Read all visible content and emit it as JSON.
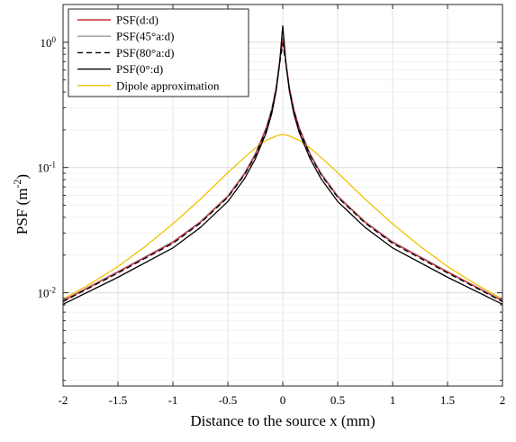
{
  "chart_data": {
    "type": "line",
    "title": "",
    "xlabel": "Distance to the source x (mm)",
    "ylabel": "PSF (m",
    "ylabel_exponent": "-2",
    "ylabel_suffix": ")",
    "xlim": [
      -2,
      2
    ],
    "ylim": [
      0.0018,
      2
    ],
    "yscale": "log",
    "grid": true,
    "legend_position": "top-left",
    "x_ticks": [
      -2,
      -1.5,
      -1,
      -0.5,
      0,
      0.5,
      1,
      1.5,
      2
    ],
    "x_tick_labels": [
      "-2",
      "-1.5",
      "-1",
      "-0.5",
      "0",
      "0.5",
      "1",
      "1.5",
      "2"
    ],
    "y_ticks": [
      {
        "value": 1,
        "base": "10",
        "exp": "0"
      },
      {
        "value": 0.1,
        "base": "10",
        "exp": "-1"
      },
      {
        "value": 0.01,
        "base": "10",
        "exp": "-2"
      }
    ],
    "series": [
      {
        "name": "PSF(d:d)",
        "color": "#d42a3c",
        "dash": "solid",
        "x": [
          -2,
          -1.5,
          -1,
          -0.75,
          -0.5,
          -0.35,
          -0.25,
          -0.15,
          -0.1,
          -0.06,
          -0.03,
          0,
          0.03,
          0.06,
          0.1,
          0.15,
          0.25,
          0.35,
          0.5,
          0.75,
          1,
          1.5,
          2
        ],
        "y": [
          0.0086,
          0.0146,
          0.0252,
          0.0365,
          0.0585,
          0.088,
          0.126,
          0.205,
          0.29,
          0.43,
          0.68,
          1.05,
          0.68,
          0.43,
          0.29,
          0.205,
          0.126,
          0.088,
          0.0585,
          0.0365,
          0.0252,
          0.0146,
          0.0086
        ]
      },
      {
        "name": "PSF(45°a:d)",
        "color": "#9a9a9a",
        "dash": "solid",
        "x": [
          -2,
          -1.5,
          -1,
          -0.75,
          -0.5,
          -0.35,
          -0.25,
          -0.15,
          -0.1,
          -0.06,
          -0.03,
          0,
          0.03,
          0.06,
          0.1,
          0.15,
          0.25,
          0.35,
          0.5,
          0.75,
          1,
          1.5,
          2
        ],
        "y": [
          0.0087,
          0.0148,
          0.0256,
          0.037,
          0.0595,
          0.09,
          0.129,
          0.21,
          0.295,
          0.44,
          0.69,
          1.1,
          0.69,
          0.44,
          0.295,
          0.21,
          0.129,
          0.09,
          0.0595,
          0.037,
          0.0256,
          0.0148,
          0.0087
        ]
      },
      {
        "name": "PSF(80°a:d)",
        "color": "#000000",
        "dash": "dashed",
        "x": [
          -2,
          -1.5,
          -1,
          -0.75,
          -0.5,
          -0.35,
          -0.25,
          -0.15,
          -0.1,
          -0.06,
          -0.03,
          0,
          0.03,
          0.06,
          0.1,
          0.15,
          0.25,
          0.35,
          0.5,
          0.75,
          1,
          1.5,
          2
        ],
        "y": [
          0.0085,
          0.0144,
          0.0248,
          0.036,
          0.0578,
          0.087,
          0.124,
          0.2,
          0.285,
          0.42,
          0.66,
          0.98,
          0.66,
          0.42,
          0.285,
          0.2,
          0.124,
          0.087,
          0.0578,
          0.036,
          0.0248,
          0.0144,
          0.0085
        ]
      },
      {
        "name": "PSF(0°:d)",
        "color": "#000000",
        "dash": "solid",
        "x": [
          -2,
          -1.5,
          -1,
          -0.75,
          -0.5,
          -0.35,
          -0.25,
          -0.15,
          -0.1,
          -0.06,
          -0.03,
          0,
          0.03,
          0.06,
          0.1,
          0.15,
          0.25,
          0.35,
          0.5,
          0.75,
          1,
          1.5,
          2
        ],
        "y": [
          0.0081,
          0.0133,
          0.0228,
          0.0332,
          0.0535,
          0.081,
          0.117,
          0.19,
          0.27,
          0.41,
          0.66,
          1.35,
          0.66,
          0.41,
          0.27,
          0.19,
          0.117,
          0.081,
          0.0535,
          0.0332,
          0.0228,
          0.0133,
          0.0081
        ]
      },
      {
        "name": "Dipole approximation",
        "color": "#f2c200",
        "dash": "solid",
        "x": [
          -2,
          -1.75,
          -1.5,
          -1.25,
          -1,
          -0.75,
          -0.5,
          -0.35,
          -0.25,
          -0.15,
          -0.05,
          0,
          0.05,
          0.15,
          0.25,
          0.35,
          0.5,
          0.75,
          1,
          1.25,
          1.5,
          1.75,
          2
        ],
        "y": [
          0.0089,
          0.0118,
          0.0162,
          0.0235,
          0.0355,
          0.0558,
          0.091,
          0.12,
          0.143,
          0.165,
          0.18,
          0.183,
          0.18,
          0.165,
          0.143,
          0.12,
          0.091,
          0.0558,
          0.0355,
          0.0235,
          0.0162,
          0.0118,
          0.0089
        ]
      }
    ]
  }
}
